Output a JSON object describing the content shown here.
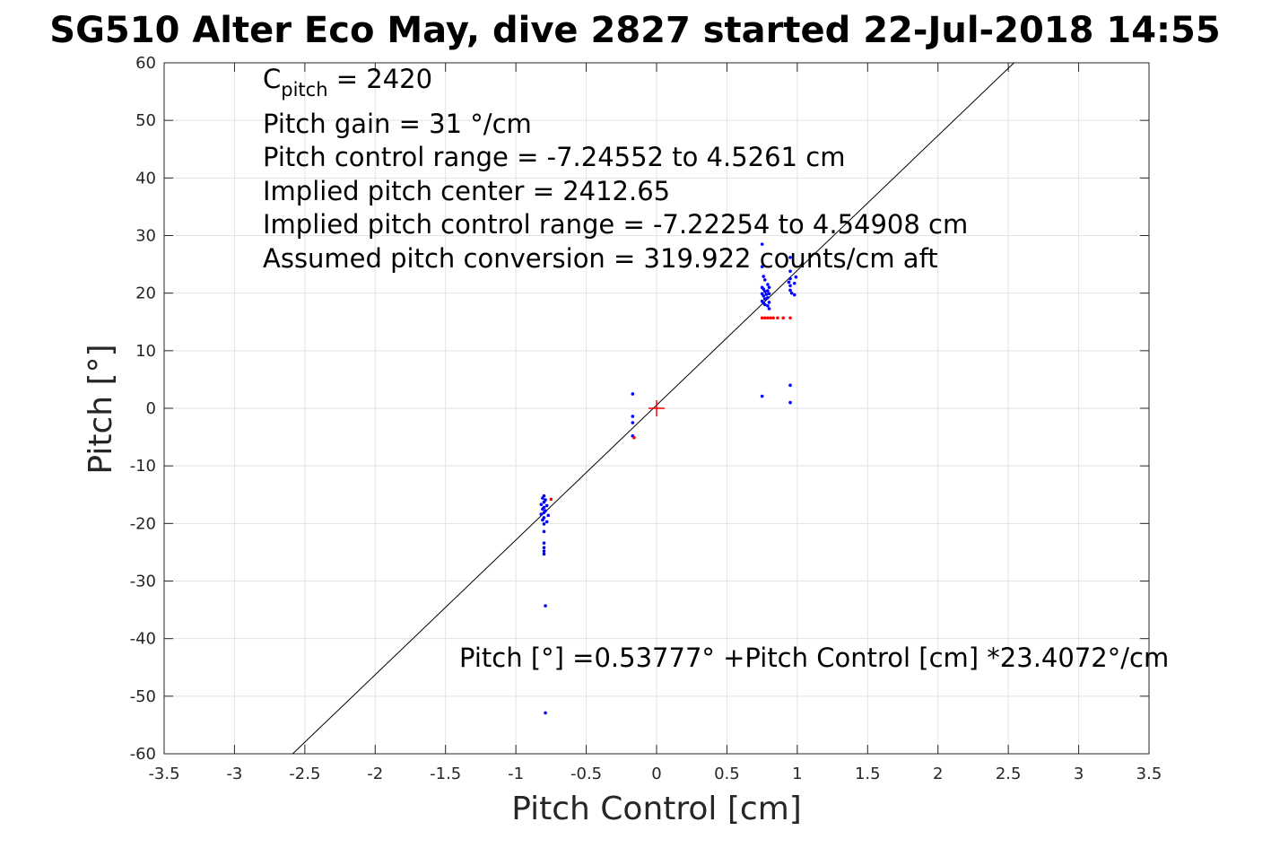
{
  "chart_data": {
    "type": "scatter",
    "title": "SG510 Alter Eco May, dive 2827 started 22-Jul-2018 14:55",
    "xlabel": "Pitch Control [cm]",
    "ylabel": "Pitch [°]",
    "xlim": [
      -3.5,
      3.5
    ],
    "ylim": [
      -60,
      60
    ],
    "x_ticks": [
      -3.5,
      -3,
      -2.5,
      -2,
      -1.5,
      -1,
      -0.5,
      0,
      0.5,
      1,
      1.5,
      2,
      2.5,
      3,
      3.5
    ],
    "x_tick_labels": [
      "-3.5",
      "-3",
      "-2.5",
      "-2",
      "-1.5",
      "-1",
      "-0.5",
      "0",
      "0.5",
      "1",
      "1.5",
      "2",
      "2.5",
      "3",
      "3.5"
    ],
    "y_ticks": [
      -60,
      -50,
      -40,
      -30,
      -20,
      -10,
      0,
      10,
      20,
      30,
      40,
      50,
      60
    ],
    "y_tick_labels": [
      "-60",
      "-50",
      "-40",
      "-30",
      "-20",
      "-10",
      "0",
      "10",
      "20",
      "30",
      "40",
      "50",
      "60"
    ],
    "grid": true,
    "fit_line": {
      "intercept": 0.53777,
      "slope": 23.4072
    },
    "center_marker": {
      "x": 0,
      "y": 0,
      "color": "#ff0000"
    },
    "colors": {
      "blue": "#0000ff",
      "red": "#ff0000",
      "line": "#000000",
      "grid": "#e3e3e3"
    },
    "annotations": {
      "c_pitch": {
        "main": "C",
        "sub": "pitch",
        "rest": " = 2420"
      },
      "lines": [
        "Pitch gain = 31 °/cm",
        "Pitch control range = -7.24552 to 4.5261 cm",
        "Implied pitch center = 2412.65",
        "Implied pitch control range = -7.22254 to 4.54908 cm",
        "Assumed pitch conversion = 319.922 counts/cm aft"
      ],
      "equation": "Pitch [°] =0.53777° +Pitch Control [cm] *23.4072°/cm"
    },
    "series": [
      {
        "color": "#0000ff",
        "points": [
          [
            -0.8,
            -15.2
          ],
          [
            -0.81,
            -15.6
          ],
          [
            -0.79,
            -15.9
          ],
          [
            -0.8,
            -16.3
          ],
          [
            -0.82,
            -16.7
          ],
          [
            -0.78,
            -16.9
          ],
          [
            -0.8,
            -17.2
          ],
          [
            -0.81,
            -17.5
          ],
          [
            -0.79,
            -17.8
          ],
          [
            -0.8,
            -18.1
          ],
          [
            -0.82,
            -18.4
          ],
          [
            -0.77,
            -18.6
          ],
          [
            -0.8,
            -19.0
          ],
          [
            -0.81,
            -19.4
          ],
          [
            -0.78,
            -19.7
          ],
          [
            -0.8,
            -20.1
          ],
          [
            -0.8,
            -21.4
          ],
          [
            -0.8,
            -23.4
          ],
          [
            -0.8,
            -24.2
          ],
          [
            -0.8,
            -24.8
          ],
          [
            -0.8,
            -25.3
          ],
          [
            -0.79,
            -34.3
          ],
          [
            -0.79,
            -52.9
          ],
          [
            -0.17,
            2.5
          ],
          [
            -0.17,
            -1.4
          ],
          [
            -0.17,
            -2.5
          ],
          [
            -0.17,
            -4.8
          ],
          [
            0.75,
            2.1
          ],
          [
            0.75,
            28.5
          ],
          [
            0.75,
            24.6
          ],
          [
            0.76,
            22.9
          ],
          [
            0.77,
            22.3
          ],
          [
            0.75,
            21.0
          ],
          [
            0.76,
            20.7
          ],
          [
            0.77,
            20.3
          ],
          [
            0.75,
            19.9
          ],
          [
            0.76,
            19.5
          ],
          [
            0.77,
            19.0
          ],
          [
            0.75,
            18.6
          ],
          [
            0.76,
            18.3
          ],
          [
            0.77,
            18.0
          ],
          [
            0.78,
            19.8
          ],
          [
            0.79,
            21.5
          ],
          [
            0.8,
            21.0
          ],
          [
            0.79,
            20.4
          ],
          [
            0.8,
            19.9
          ],
          [
            0.79,
            19.2
          ],
          [
            0.8,
            18.4
          ],
          [
            0.79,
            17.8
          ],
          [
            0.8,
            17.3
          ],
          [
            0.95,
            26.2
          ],
          [
            0.95,
            23.8
          ],
          [
            0.95,
            22.5
          ],
          [
            0.94,
            21.9
          ],
          [
            0.95,
            21.3
          ],
          [
            0.95,
            20.5
          ],
          [
            0.96,
            20.0
          ],
          [
            0.99,
            22.8
          ],
          [
            0.98,
            21.7
          ],
          [
            0.98,
            19.7
          ],
          [
            0.95,
            4.0
          ],
          [
            0.95,
            1.0
          ]
        ]
      },
      {
        "color": "#ff0000",
        "points": [
          [
            -0.75,
            -15.8
          ],
          [
            -0.16,
            -5.1
          ],
          [
            0.75,
            15.7
          ],
          [
            0.77,
            15.7
          ],
          [
            0.79,
            15.7
          ],
          [
            0.81,
            15.7
          ],
          [
            0.83,
            15.7
          ],
          [
            0.86,
            15.7
          ],
          [
            0.9,
            15.7
          ],
          [
            0.95,
            15.7
          ]
        ]
      }
    ]
  }
}
